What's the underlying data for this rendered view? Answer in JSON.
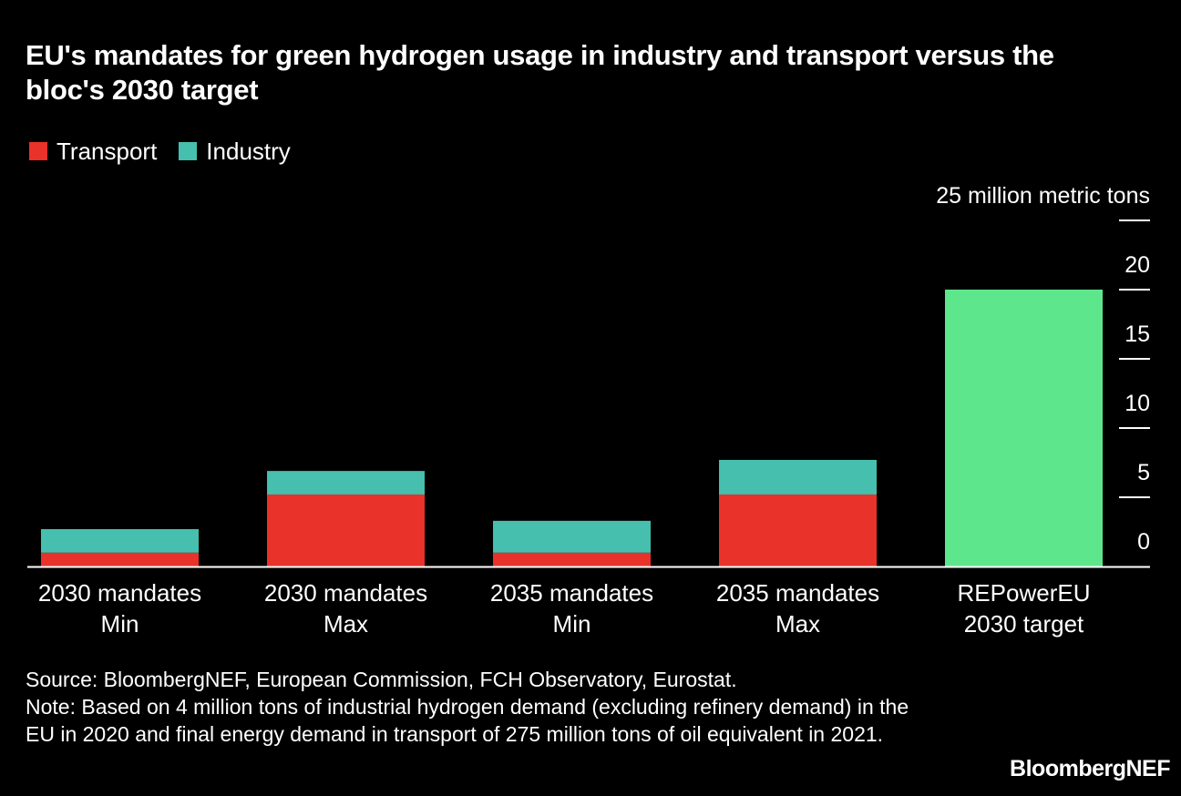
{
  "title": "EU's mandates for green hydrogen usage in industry and transport versus the bloc's 2030 target",
  "legend": [
    {
      "label": "Transport",
      "color": "#E8322A"
    },
    {
      "label": "Industry",
      "color": "#46BFAE"
    }
  ],
  "chart_data": {
    "type": "bar",
    "stacked": true,
    "title": "EU's mandates for green hydrogen usage in industry and transport versus the bloc's 2030 target",
    "xlabel": "",
    "ylabel": "million metric tons",
    "y_unit_label": "25 million metric tons",
    "ylim": [
      0,
      25
    ],
    "yticks": [
      0,
      5,
      10,
      15,
      20,
      25
    ],
    "ytick_labels": [
      "0",
      "5",
      "10",
      "15",
      "20",
      "25 million metric tons"
    ],
    "y_axis_position": "right",
    "grid": false,
    "legend_position": "top-left",
    "categories": [
      [
        "2030 mandates",
        "Min"
      ],
      [
        "2030 mandates",
        "Max"
      ],
      [
        "2035 mandates",
        "Min"
      ],
      [
        "2035 mandates",
        "Max"
      ],
      [
        "REPowerEU",
        "2030 target"
      ]
    ],
    "series": [
      {
        "name": "Transport",
        "color": "#E8322A",
        "values": [
          1.0,
          5.2,
          1.0,
          5.2,
          null
        ]
      },
      {
        "name": "Industry",
        "color": "#46BFAE",
        "values": [
          1.7,
          1.7,
          2.3,
          2.5,
          null
        ]
      },
      {
        "name": "REPowerEU 2030 target",
        "color": "#5EE68D",
        "values": [
          null,
          null,
          null,
          null,
          20
        ]
      }
    ]
  },
  "notes": {
    "source": "Source: BloombergNEF, European Commission, FCH Observatory, Eurostat.",
    "note": "Note: Based on 4 million tons of industrial hydrogen demand (excluding refinery demand) in the EU in 2020 and final energy demand in transport of 275 million tons of oil equivalent in 2021."
  },
  "brand": "BloombergNEF"
}
